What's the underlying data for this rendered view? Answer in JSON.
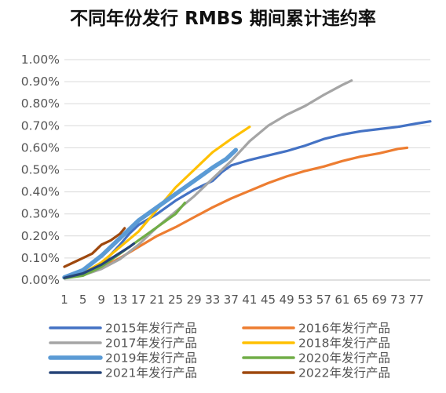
{
  "chart_data": {
    "type": "line",
    "title": "不同年份发行 RMBS 期间累计违约率",
    "xlabel": "",
    "ylabel": "",
    "ylim": [
      0,
      1.0
    ],
    "xlim": [
      1,
      80
    ],
    "yticks": [
      "0.00%",
      "0.10%",
      "0.20%",
      "0.30%",
      "0.40%",
      "0.50%",
      "0.60%",
      "0.70%",
      "0.80%",
      "0.90%",
      "1.00%"
    ],
    "xticks": [
      "1",
      "5",
      "9",
      "13",
      "17",
      "21",
      "25",
      "29",
      "33",
      "37",
      "41",
      "45",
      "49",
      "53",
      "57",
      "61",
      "65",
      "69",
      "73",
      "77"
    ],
    "grid": true,
    "legend_position": "bottom",
    "series": [
      {
        "name": "2015年发行产品",
        "color": "#4472C4",
        "width": 3.2,
        "points": [
          [
            1,
            0.012
          ],
          [
            5,
            0.03
          ],
          [
            9,
            0.07
          ],
          [
            13,
            0.16
          ],
          [
            15,
            0.21
          ],
          [
            17,
            0.25
          ],
          [
            21,
            0.3
          ],
          [
            25,
            0.36
          ],
          [
            29,
            0.41
          ],
          [
            33,
            0.45
          ],
          [
            35,
            0.49
          ],
          [
            37,
            0.52
          ],
          [
            41,
            0.545
          ],
          [
            45,
            0.565
          ],
          [
            49,
            0.585
          ],
          [
            53,
            0.61
          ],
          [
            57,
            0.64
          ],
          [
            61,
            0.66
          ],
          [
            65,
            0.675
          ],
          [
            69,
            0.685
          ],
          [
            73,
            0.695
          ],
          [
            77,
            0.71
          ],
          [
            80,
            0.72
          ]
        ]
      },
      {
        "name": "2016年发行产品",
        "color": "#ED7D31",
        "width": 3.2,
        "points": [
          [
            1,
            0.012
          ],
          [
            5,
            0.025
          ],
          [
            9,
            0.055
          ],
          [
            13,
            0.1
          ],
          [
            17,
            0.15
          ],
          [
            21,
            0.2
          ],
          [
            25,
            0.24
          ],
          [
            29,
            0.285
          ],
          [
            33,
            0.33
          ],
          [
            37,
            0.37
          ],
          [
            41,
            0.405
          ],
          [
            45,
            0.44
          ],
          [
            49,
            0.47
          ],
          [
            53,
            0.495
          ],
          [
            57,
            0.515
          ],
          [
            61,
            0.54
          ],
          [
            65,
            0.56
          ],
          [
            69,
            0.575
          ],
          [
            73,
            0.595
          ],
          [
            75,
            0.6
          ]
        ]
      },
      {
        "name": "2017年发行产品",
        "color": "#A5A5A5",
        "width": 3.2,
        "points": [
          [
            1,
            0.01
          ],
          [
            5,
            0.022
          ],
          [
            9,
            0.05
          ],
          [
            13,
            0.095
          ],
          [
            17,
            0.16
          ],
          [
            21,
            0.24
          ],
          [
            25,
            0.31
          ],
          [
            29,
            0.38
          ],
          [
            33,
            0.46
          ],
          [
            37,
            0.54
          ],
          [
            41,
            0.63
          ],
          [
            45,
            0.7
          ],
          [
            49,
            0.75
          ],
          [
            53,
            0.79
          ],
          [
            57,
            0.84
          ],
          [
            61,
            0.885
          ],
          [
            63,
            0.905
          ]
        ]
      },
      {
        "name": "2018年发行产品",
        "color": "#FFC000",
        "width": 3.2,
        "points": [
          [
            1,
            0.01
          ],
          [
            5,
            0.03
          ],
          [
            9,
            0.08
          ],
          [
            13,
            0.15
          ],
          [
            17,
            0.22
          ],
          [
            21,
            0.32
          ],
          [
            25,
            0.42
          ],
          [
            29,
            0.5
          ],
          [
            33,
            0.58
          ],
          [
            37,
            0.64
          ],
          [
            41,
            0.695
          ]
        ]
      },
      {
        "name": "2019年发行产品",
        "color": "#5B9BD5",
        "width": 5.5,
        "points": [
          [
            1,
            0.012
          ],
          [
            5,
            0.045
          ],
          [
            9,
            0.11
          ],
          [
            13,
            0.19
          ],
          [
            17,
            0.27
          ],
          [
            21,
            0.33
          ],
          [
            25,
            0.39
          ],
          [
            29,
            0.45
          ],
          [
            33,
            0.51
          ],
          [
            36,
            0.55
          ],
          [
            38,
            0.59
          ]
        ]
      },
      {
        "name": "2020年发行产品",
        "color": "#70AD47",
        "width": 3.2,
        "points": [
          [
            1,
            0.008
          ],
          [
            5,
            0.02
          ],
          [
            9,
            0.06
          ],
          [
            13,
            0.12
          ],
          [
            17,
            0.18
          ],
          [
            21,
            0.24
          ],
          [
            25,
            0.3
          ],
          [
            27,
            0.35
          ]
        ]
      },
      {
        "name": "2021年发行产品",
        "color": "#264478",
        "width": 3.2,
        "points": [
          [
            1,
            0.01
          ],
          [
            5,
            0.03
          ],
          [
            9,
            0.07
          ],
          [
            12,
            0.11
          ],
          [
            15,
            0.15
          ],
          [
            16,
            0.165
          ]
        ]
      },
      {
        "name": "2022年发行产品",
        "color": "#9E480E",
        "width": 3.2,
        "points": [
          [
            1,
            0.06
          ],
          [
            3,
            0.08
          ],
          [
            5,
            0.1
          ],
          [
            7,
            0.12
          ],
          [
            9,
            0.16
          ],
          [
            11,
            0.18
          ],
          [
            13,
            0.21
          ],
          [
            14,
            0.235
          ]
        ]
      }
    ]
  }
}
